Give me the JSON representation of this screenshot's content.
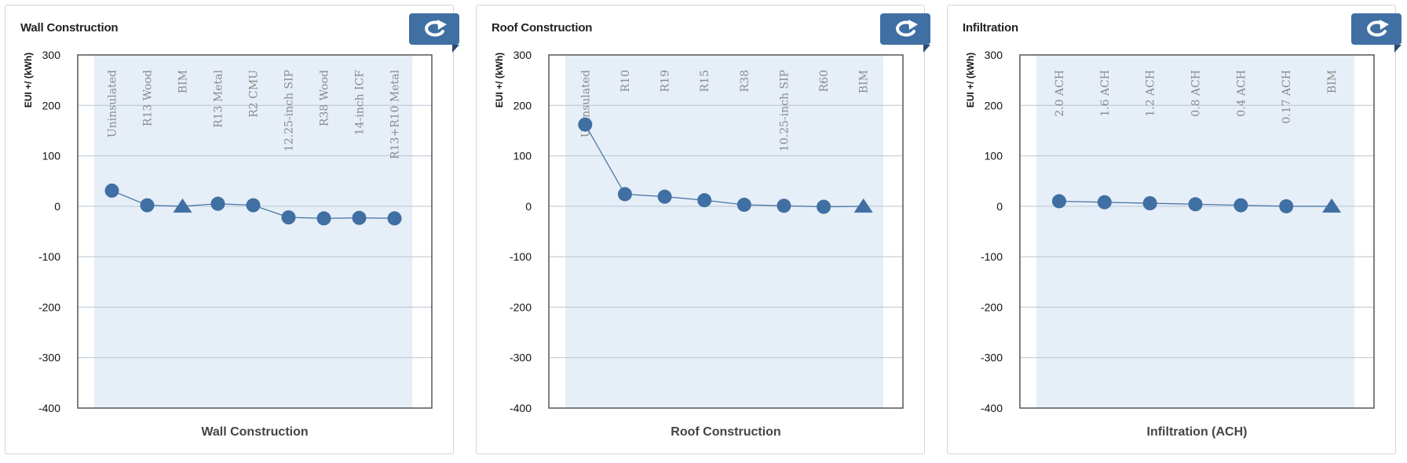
{
  "colors": {
    "accent": "#3f6fa3",
    "plot_band": "#e6eef7",
    "grid": "#b9c6d3",
    "axis": "#555555"
  },
  "icons": {
    "refresh": "refresh-icon"
  },
  "chart_data": [
    {
      "type": "line",
      "title": "Wall Construction",
      "xlabel": "Wall Construction",
      "ylabel": "EUI +/ (kWh)",
      "ylim": [
        -400,
        300
      ],
      "yticks": [
        300,
        200,
        100,
        0,
        -100,
        -200,
        -300,
        -400
      ],
      "categories": [
        "Uninsulated",
        "R13 Wood",
        "BIM",
        "R13 Metal",
        "R2 CMU",
        "12.25-inch SIP",
        "R38 Wood",
        "14-inch ICF",
        "R13+R10 Metal"
      ],
      "values": [
        31,
        2,
        0,
        5,
        2,
        -22,
        -24,
        -23,
        -24
      ],
      "markers": [
        "circle",
        "circle",
        "triangle",
        "circle",
        "circle",
        "circle",
        "circle",
        "circle",
        "circle"
      ],
      "grid": true,
      "legend": "none"
    },
    {
      "type": "line",
      "title": "Roof Construction",
      "xlabel": "Roof Construction",
      "ylabel": "EUI +/ (kWh)",
      "ylim": [
        -400,
        300
      ],
      "yticks": [
        300,
        200,
        100,
        0,
        -100,
        -200,
        -300,
        -400
      ],
      "categories": [
        "Uninsulated",
        "R10",
        "R19",
        "R15",
        "R38",
        "10.25-inch SIP",
        "R60",
        "BIM"
      ],
      "values": [
        162,
        24,
        19,
        12,
        3,
        1,
        -1,
        0
      ],
      "markers": [
        "circle",
        "circle",
        "circle",
        "circle",
        "circle",
        "circle",
        "circle",
        "triangle"
      ],
      "grid": true,
      "legend": "none"
    },
    {
      "type": "line",
      "title": "Infiltration",
      "xlabel": "Infiltration (ACH)",
      "ylabel": "EUI +/ (kWh)",
      "ylim": [
        -400,
        300
      ],
      "yticks": [
        300,
        200,
        100,
        0,
        -100,
        -200,
        -300,
        -400
      ],
      "categories": [
        "2.0 ACH",
        "1.6 ACH",
        "1.2 ACH",
        "0.8 ACH",
        "0.4 ACH",
        "0.17 ACH",
        "BIM"
      ],
      "values": [
        10,
        8,
        6,
        4,
        2,
        0,
        0
      ],
      "markers": [
        "circle",
        "circle",
        "circle",
        "circle",
        "circle",
        "circle",
        "triangle"
      ],
      "grid": true,
      "legend": "none"
    }
  ]
}
